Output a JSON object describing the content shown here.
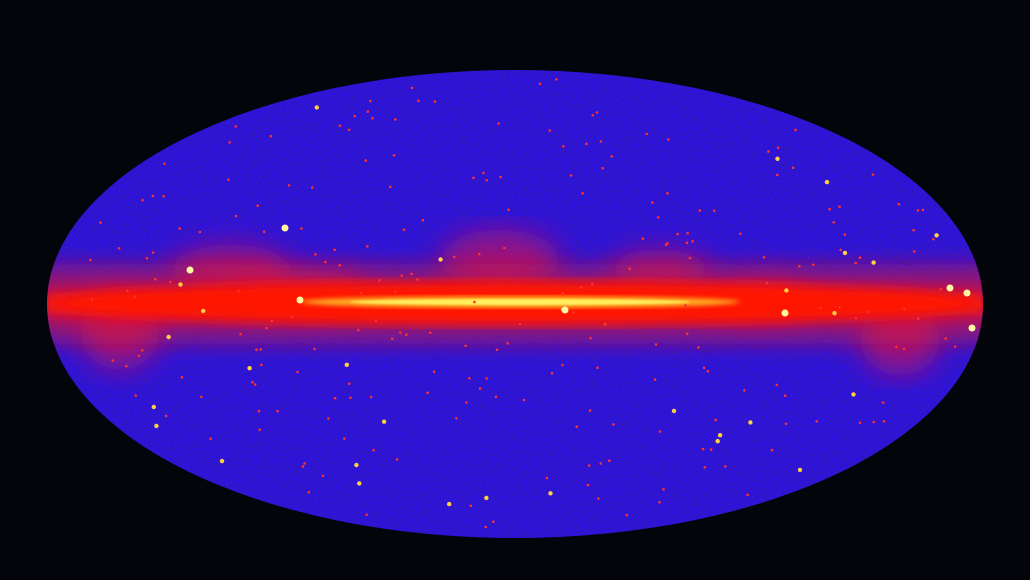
{
  "image": {
    "subject": "all-sky map",
    "colors": {
      "background": "#04050a",
      "sky": "#2a10e0",
      "sky_dark": "#10055a",
      "band": "#ff1a00",
      "core": "#ffee40",
      "point_source": "#ff3030"
    }
  }
}
